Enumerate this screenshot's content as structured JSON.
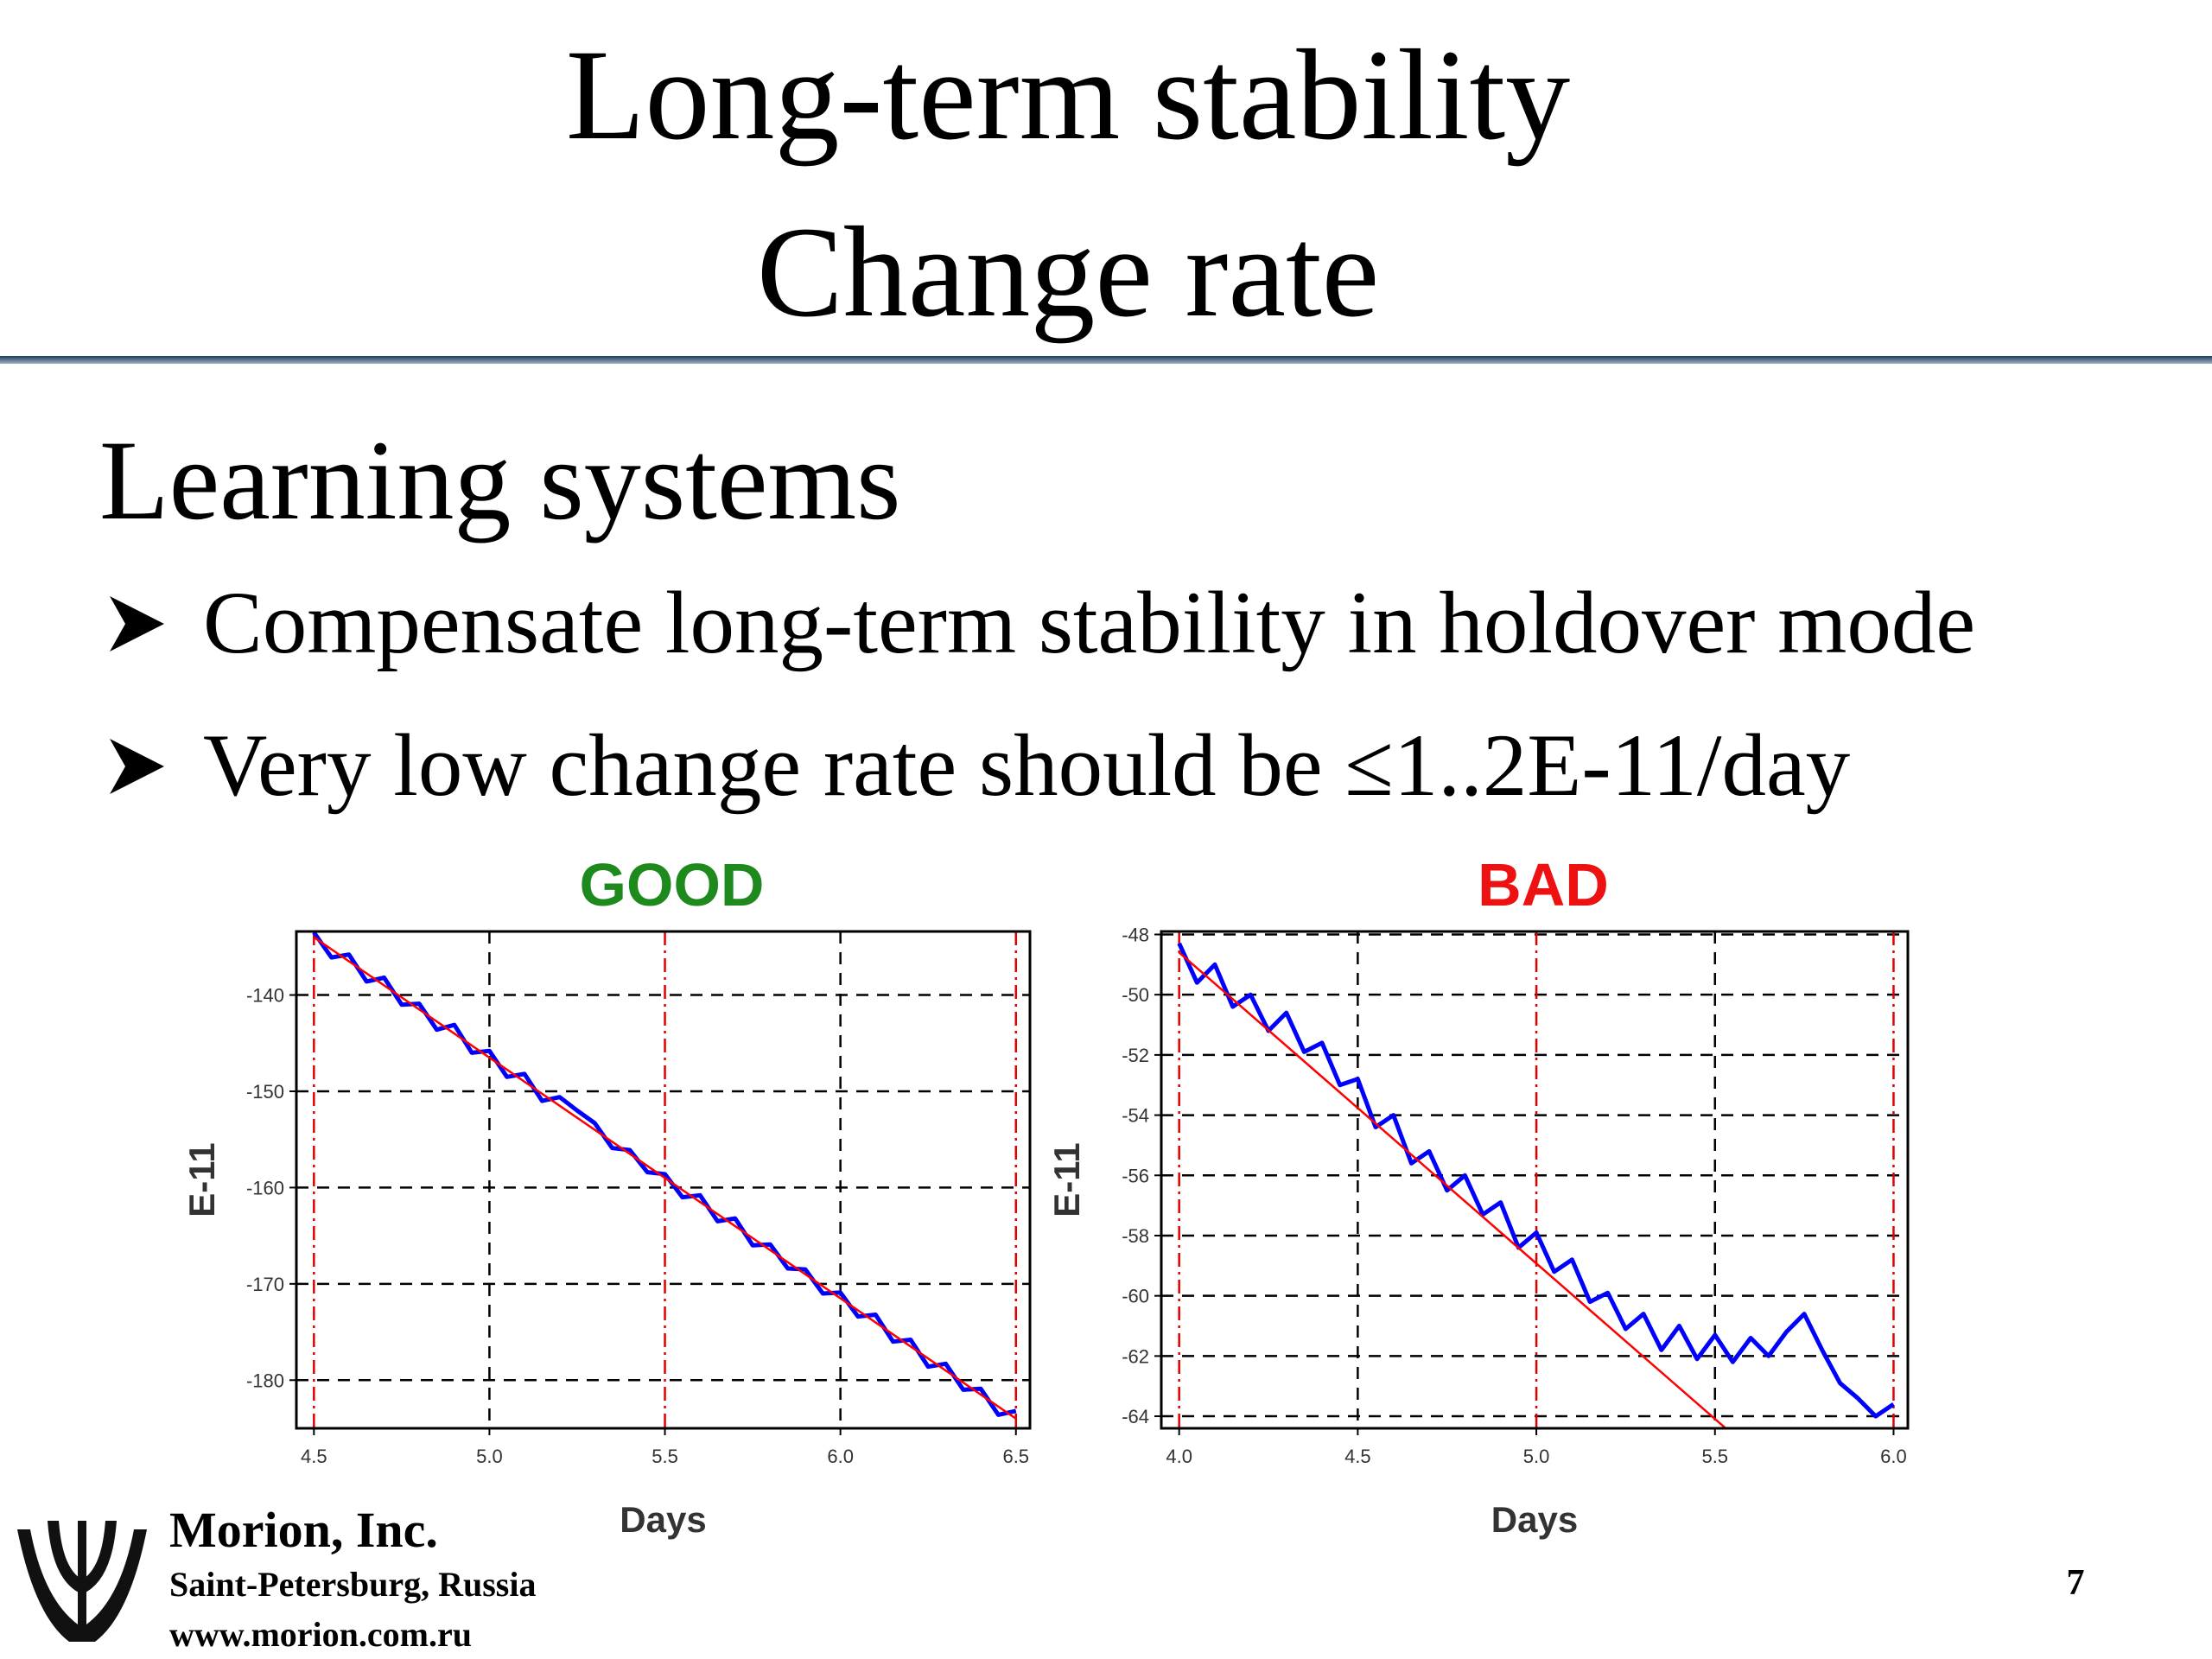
{
  "header": {
    "title_lines": [
      "Long-term stability",
      "Change rate"
    ]
  },
  "subtitle": "Learning systems",
  "bullets": [
    "Compensate long-term stability in holdover mode",
    "Very low change rate should be ≤1..2E-11/day"
  ],
  "chart_data": [
    {
      "type": "line",
      "title": "GOOD",
      "title_color": "#1e8a1e",
      "x_label": "Days",
      "y_label": "E-11",
      "xlim": [
        4.45,
        6.54
      ],
      "ylim": [
        -185,
        -133.4
      ],
      "xticks": [
        4.5,
        {
          "value": 5,
          "label": "5.0"
        },
        5.5,
        {
          "value": 6,
          "label": "6.0"
        },
        6.5
      ],
      "yticks": [
        -140,
        -150,
        -160,
        -170,
        -180
      ],
      "grid": true,
      "vlines": [
        4.5,
        5.5,
        6.5
      ],
      "vline_color": "#e00000",
      "series": [
        {
          "color": "#0000ff",
          "x": [
            4.5,
            4.55,
            4.6,
            4.65,
            4.7,
            4.75,
            4.8,
            4.85,
            4.9,
            4.95,
            5,
            5.05,
            5.1,
            5.15,
            5.2,
            5.25,
            5.3,
            5.35,
            5.4,
            5.45,
            5.5,
            5.55,
            5.6,
            5.65,
            5.7,
            5.75,
            5.8,
            5.85,
            5.9,
            5.95,
            6,
            6.05,
            6.1,
            6.15,
            6.2,
            6.25,
            6.3,
            6.35,
            6.4,
            6.45,
            6.5
          ],
          "values": [
            -133.5,
            -136.1,
            -135.8,
            -138.6,
            -138.2,
            -141.0,
            -140.9,
            -143.6,
            -143.1,
            -146.0,
            -145.8,
            -148.5,
            -148.2,
            -151.0,
            -150.6,
            -152.0,
            -153.3,
            -155.9,
            -156.1,
            -158.4,
            -158.6,
            -161.0,
            -160.8,
            -163.5,
            -163.2,
            -166.0,
            -165.9,
            -168.4,
            -168.5,
            -171.0,
            -170.9,
            -173.4,
            -173.2,
            -176.0,
            -175.8,
            -178.6,
            -178.3,
            -181.0,
            -180.9,
            -183.6,
            -183.2
          ]
        },
        {
          "color": "#ff0000",
          "x": [
            4.5,
            6.5
          ],
          "values": [
            -134,
            -184
          ]
        }
      ]
    },
    {
      "type": "line",
      "title": "BAD",
      "title_color": "#ee1111",
      "x_label": "Days",
      "y_label": "E-11",
      "xlim": [
        3.95,
        6.04
      ],
      "ylim": [
        -64.4,
        -47.9
      ],
      "xticks": [
        {
          "value": 4,
          "label": "4.0"
        },
        4.5,
        {
          "value": 5,
          "label": "5.0"
        },
        5.5,
        {
          "value": 6,
          "label": "6.0"
        }
      ],
      "yticks": [
        -48,
        -50,
        -52,
        -54,
        -56,
        -58,
        -60,
        -62,
        -64
      ],
      "grid": true,
      "vlines": [
        4,
        5,
        6
      ],
      "vline_color": "#e00000",
      "series": [
        {
          "color": "#0000ff",
          "x": [
            4,
            4.05,
            4.1,
            4.15,
            4.2,
            4.25,
            4.3,
            4.35,
            4.4,
            4.45,
            4.5,
            4.55,
            4.6,
            4.65,
            4.7,
            4.75,
            4.8,
            4.85,
            4.9,
            4.95,
            5,
            5.05,
            5.1,
            5.15,
            5.2,
            5.25,
            5.3,
            5.35,
            5.4,
            5.45,
            5.5,
            5.55,
            5.6,
            5.65,
            5.7,
            5.75,
            5.8,
            5.85,
            5.9,
            5.95,
            6
          ],
          "values": [
            -48.3,
            -49.6,
            -49.0,
            -50.4,
            -50.0,
            -51.2,
            -50.6,
            -51.9,
            -51.6,
            -53.0,
            -52.8,
            -54.4,
            -54.0,
            -55.6,
            -55.2,
            -56.5,
            -56.0,
            -57.3,
            -56.9,
            -58.4,
            -57.9,
            -59.2,
            -58.8,
            -60.2,
            -59.9,
            -61.1,
            -60.6,
            -61.8,
            -61.0,
            -62.1,
            -61.3,
            -62.2,
            -61.4,
            -62.0,
            -61.2,
            -60.6,
            -61.8,
            -62.9,
            -63.4,
            -64.0,
            -63.6
          ]
        },
        {
          "color": "#ff0000",
          "x": [
            4,
            5.53
          ],
          "values": [
            -48.6,
            -64.4
          ]
        }
      ]
    }
  ],
  "footer": {
    "company": "Morion, Inc.",
    "city": "Saint-Petersburg, Russia",
    "url": "www.morion.com.ru",
    "page": "7"
  }
}
